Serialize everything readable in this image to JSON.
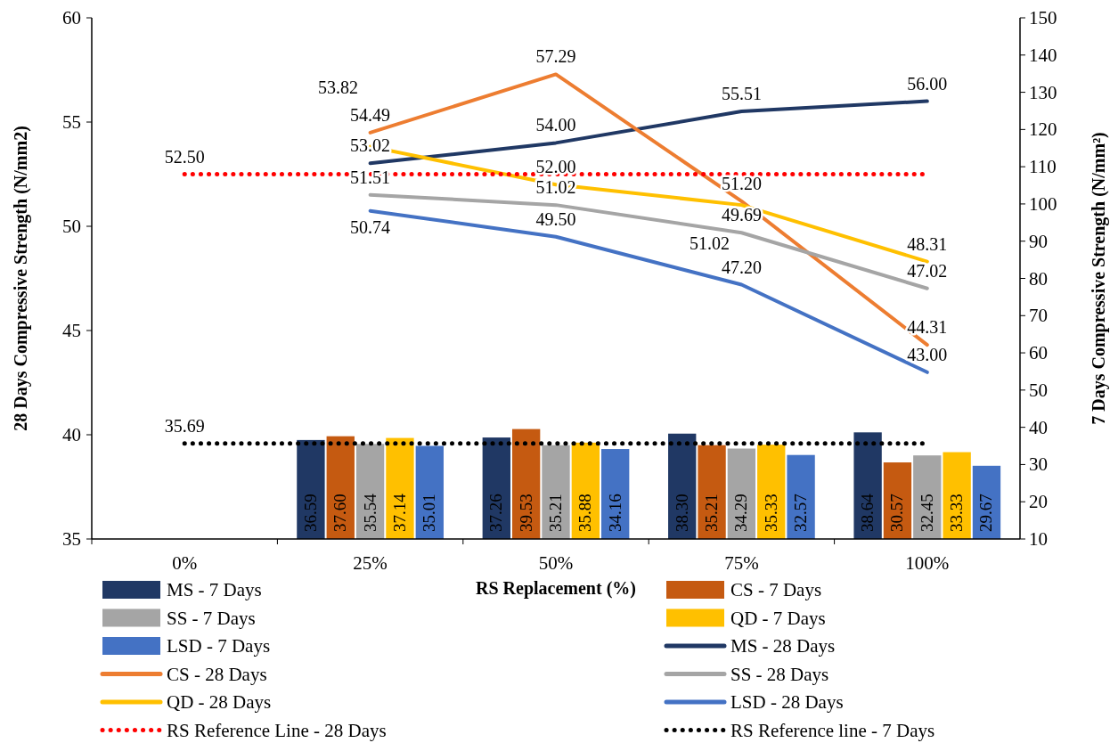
{
  "chart_data": {
    "type": "bar",
    "xlabel": "RS Replacement (%)",
    "ylabel": "28 Days Compressive Strength (N/mm2)",
    "y2label": "7 Days Compressive Strength (N/mm²)",
    "categories": [
      "0%",
      "25%",
      "50%",
      "75%",
      "100%"
    ],
    "ylim": [
      35,
      60
    ],
    "yticks": [
      35,
      40,
      45,
      50,
      55,
      60
    ],
    "y2lim": [
      10,
      150
    ],
    "y2ticks": [
      10,
      20,
      30,
      40,
      50,
      60,
      70,
      80,
      90,
      100,
      110,
      120,
      130,
      140,
      150
    ],
    "grid": false,
    "legend": "bottom",
    "series": [
      {
        "name": "MS - 7 Days",
        "axis": "y2",
        "color": "#203864",
        "values": [
          null,
          36.59,
          37.26,
          38.3,
          38.64
        ],
        "value_labels": [
          null,
          "36.59",
          "37.26",
          "38.30",
          "38.64"
        ]
      },
      {
        "name": "CS - 7 Days",
        "axis": "y2",
        "color": "#c55a11",
        "values": [
          null,
          37.6,
          39.53,
          35.21,
          30.57
        ],
        "value_labels": [
          null,
          "37.60",
          "39.53",
          "35.21",
          "30.57"
        ]
      },
      {
        "name": "SS - 7 Days",
        "axis": "y2",
        "color": "#a5a5a5",
        "values": [
          null,
          35.54,
          35.21,
          34.29,
          32.45
        ],
        "value_labels": [
          null,
          "35.54",
          "35.21",
          "34.29",
          "32.45"
        ]
      },
      {
        "name": "QD - 7 Days",
        "axis": "y2",
        "color": "#ffc000",
        "values": [
          null,
          37.14,
          35.88,
          35.33,
          33.33
        ],
        "value_labels": [
          null,
          "37.14",
          "35.88",
          "35.33",
          "33.33"
        ]
      },
      {
        "name": "LSD - 7 Days",
        "axis": "y2",
        "color": "#4472c4",
        "values": [
          null,
          35.01,
          34.16,
          32.57,
          29.67
        ],
        "value_labels": [
          null,
          "35.01",
          "34.16",
          "32.57",
          "29.67"
        ]
      },
      {
        "name": "MS - 28 Days",
        "type": "line",
        "color": "#203864",
        "values": [
          null,
          53.02,
          54.0,
          55.51,
          56.0
        ],
        "value_labels": [
          null,
          "53.02",
          "54.00",
          "55.51",
          "56.00"
        ]
      },
      {
        "name": "CS - 28 Days",
        "type": "line",
        "color": "#ed7d31",
        "values": [
          null,
          54.49,
          57.29,
          51.2,
          44.31
        ],
        "value_labels": [
          null,
          "54.49",
          "57.29",
          "51.20",
          "44.31"
        ]
      },
      {
        "name": "SS - 28 Days",
        "type": "line",
        "color": "#a5a5a5",
        "values": [
          null,
          51.51,
          51.02,
          49.69,
          47.02
        ],
        "value_labels": [
          null,
          "51.51",
          "51.02",
          "49.69",
          "47.02"
        ]
      },
      {
        "name": "QD - 28 Days",
        "type": "line",
        "color": "#ffc000",
        "values": [
          null,
          53.82,
          52.0,
          51.02,
          48.31
        ],
        "value_labels": [
          null,
          "53.82",
          "52.00",
          "51.02",
          "48.31"
        ]
      },
      {
        "name": "LSD - 28 Days",
        "type": "line",
        "color": "#4472c4",
        "values": [
          null,
          50.74,
          49.5,
          47.2,
          43.0
        ],
        "value_labels": [
          null,
          "50.74",
          "49.50",
          "47.20",
          "43.00"
        ]
      },
      {
        "name": "RS Reference Line - 28 Days",
        "type": "line",
        "line_style": "dotted",
        "color": "#ff0000",
        "values": [
          52.5,
          52.5,
          52.5,
          52.5,
          52.5
        ],
        "value_labels": [
          "52.50",
          null,
          null,
          null,
          null
        ]
      },
      {
        "name": "RS Reference line - 7 Days",
        "type": "line",
        "axis": "y2",
        "line_style": "dotted",
        "color": "#000000",
        "values": [
          35.69,
          35.69,
          35.69,
          35.69,
          35.69
        ],
        "value_labels": [
          "35.69",
          null,
          null,
          null,
          null
        ]
      }
    ]
  }
}
